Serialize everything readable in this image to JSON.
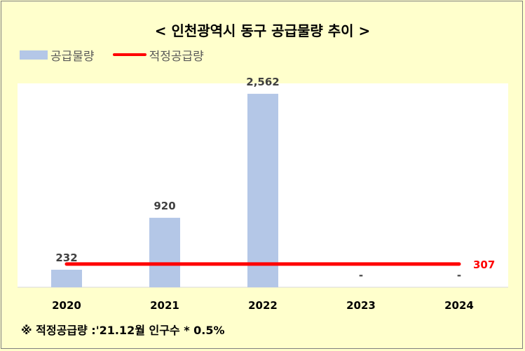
{
  "title": "< 인천광역시 동구 공급물량 추이 >",
  "legend": {
    "supply": "공급물량",
    "optimal": "적정공급량"
  },
  "footnote": "※ 적정공급량 :'21.12월 인구수 * 0.5%",
  "chart_data": {
    "type": "bar",
    "categories": [
      "2020",
      "2021",
      "2022",
      "2023",
      "2024"
    ],
    "series": [
      {
        "name": "공급물량",
        "values": [
          232,
          920,
          2562,
          0,
          0
        ],
        "labels": [
          "232",
          "920",
          "2,562",
          "-",
          "-"
        ],
        "color": "#b4c7e7"
      },
      {
        "name": "적정공급량",
        "values": [
          307,
          307,
          307,
          307,
          307
        ],
        "line_label": "307",
        "color": "#ff0000",
        "kind": "line"
      }
    ],
    "ylim": [
      0,
      2700
    ],
    "grid": false,
    "legend_position": "top-left"
  }
}
